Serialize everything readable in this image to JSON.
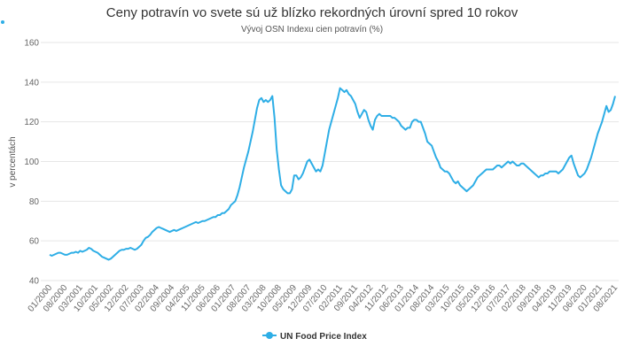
{
  "chart_data": {
    "type": "line",
    "title": "Ceny potravín vo svete sú už blízko rekordných úrovní spred 10 rokov",
    "subtitle": "Vývoj OSN Indexu cien potravín (%)",
    "y_label": "v percentách",
    "legend": "bottom",
    "grid": true,
    "ylim": [
      40,
      160
    ],
    "yticks": [
      40,
      60,
      80,
      100,
      120,
      140,
      160
    ],
    "categories": [
      "01/2000",
      null,
      null,
      null,
      null,
      null,
      null,
      "08/2000",
      null,
      null,
      null,
      null,
      null,
      null,
      "03/2001",
      null,
      null,
      null,
      null,
      null,
      null,
      "10/2001",
      null,
      null,
      null,
      null,
      null,
      null,
      "05/2002",
      null,
      null,
      null,
      null,
      null,
      null,
      "12/2002",
      null,
      null,
      null,
      null,
      null,
      null,
      "07/2003",
      null,
      null,
      null,
      null,
      null,
      null,
      "02/2004",
      null,
      null,
      null,
      null,
      null,
      null,
      "09/2004",
      null,
      null,
      null,
      null,
      null,
      null,
      "04/2005",
      null,
      null,
      null,
      null,
      null,
      null,
      "11/2005",
      null,
      null,
      null,
      null,
      null,
      null,
      "06/2006",
      null,
      null,
      null,
      null,
      null,
      null,
      "01/2007",
      null,
      null,
      null,
      null,
      null,
      null,
      "08/2007",
      null,
      null,
      null,
      null,
      null,
      null,
      "03/2008",
      null,
      null,
      null,
      null,
      null,
      null,
      "10/2008",
      null,
      null,
      null,
      null,
      null,
      null,
      "05/2009",
      null,
      null,
      null,
      null,
      null,
      null,
      "12/2009",
      null,
      null,
      null,
      null,
      null,
      null,
      "07/2010",
      null,
      null,
      null,
      null,
      null,
      null,
      "02/2011",
      null,
      null,
      null,
      null,
      null,
      null,
      "09/2011",
      null,
      null,
      null,
      null,
      null,
      null,
      "04/2012",
      null,
      null,
      null,
      null,
      null,
      null,
      "11/2012",
      null,
      null,
      null,
      null,
      null,
      null,
      "06/2013",
      null,
      null,
      null,
      null,
      null,
      null,
      "01/2014",
      null,
      null,
      null,
      null,
      null,
      null,
      "08/2014",
      null,
      null,
      null,
      null,
      null,
      null,
      "03/2015",
      null,
      null,
      null,
      null,
      null,
      null,
      "10/2015",
      null,
      null,
      null,
      null,
      null,
      null,
      "05/2016",
      null,
      null,
      null,
      null,
      null,
      null,
      "12/2016",
      null,
      null,
      null,
      null,
      null,
      null,
      "07/2017",
      null,
      null,
      null,
      null,
      null,
      null,
      "02/2018",
      null,
      null,
      null,
      null,
      null,
      null,
      "09/2018",
      null,
      null,
      null,
      null,
      null,
      null,
      "04/2019",
      null,
      null,
      null,
      null,
      null,
      null,
      "11/2019",
      null,
      null,
      null,
      null,
      null,
      null,
      "06/2020",
      null,
      null,
      null,
      null,
      null,
      null,
      "01/2021",
      null,
      null,
      null,
      null,
      null,
      null,
      "08/2021"
    ],
    "series": [
      {
        "name": "UN Food Price Index",
        "color": "#2eaee6",
        "values": [
          53,
          52.5,
          53,
          53.5,
          54,
          54,
          53.5,
          53,
          53,
          53.5,
          54,
          54,
          54.5,
          54,
          55,
          54.5,
          55,
          55.5,
          56.5,
          56,
          55,
          54.5,
          54,
          53,
          52,
          51.5,
          51,
          50.5,
          51,
          52,
          53,
          54,
          55,
          55.5,
          55.5,
          56,
          56,
          56.5,
          56,
          55.5,
          56,
          57,
          58,
          60,
          61.5,
          62,
          63,
          64.5,
          65.5,
          66.5,
          67,
          66.5,
          66,
          65.5,
          65,
          64.5,
          65,
          65.5,
          65,
          65.5,
          66,
          66.5,
          67,
          67.5,
          68,
          68.5,
          69,
          69.5,
          69,
          69.5,
          70,
          70,
          70.5,
          71,
          71.5,
          72,
          72,
          73,
          73,
          74,
          74,
          75,
          76,
          78,
          79,
          80,
          83,
          87,
          92,
          97,
          101,
          105,
          110,
          115,
          121,
          127,
          131,
          132,
          130,
          131,
          130,
          131,
          133,
          122,
          106,
          96,
          88,
          86,
          85,
          84,
          84,
          86,
          93,
          93,
          91,
          92,
          94,
          97,
          100,
          101,
          99,
          97,
          95,
          96,
          95,
          98,
          104,
          110,
          116,
          120,
          124,
          128,
          132,
          137,
          136,
          135,
          136,
          134,
          133,
          131,
          129,
          125,
          122,
          124,
          126,
          125,
          121,
          118,
          116,
          121,
          123,
          124,
          123,
          123,
          123,
          123,
          123,
          122,
          122,
          121,
          120,
          118,
          117,
          116,
          117,
          117,
          120,
          121,
          121,
          120,
          120,
          117,
          114,
          110,
          109,
          108,
          105,
          102,
          100,
          97,
          96,
          95,
          95,
          94,
          92,
          90,
          89,
          90,
          88,
          87,
          86,
          85,
          86,
          87,
          88,
          90,
          92,
          93,
          94,
          95,
          96,
          96,
          96,
          96,
          97,
          98,
          98,
          97,
          98,
          99,
          100,
          99,
          100,
          99,
          98,
          98,
          99,
          99,
          98,
          97,
          96,
          95,
          94,
          93,
          92,
          93,
          93,
          94,
          94,
          95,
          95,
          95,
          95,
          94,
          95,
          96,
          98,
          100,
          102,
          103,
          99,
          96,
          93,
          92,
          93,
          94,
          96,
          99,
          102,
          106,
          110,
          114,
          117,
          120,
          124,
          128,
          125,
          126,
          129,
          133
        ]
      }
    ]
  }
}
